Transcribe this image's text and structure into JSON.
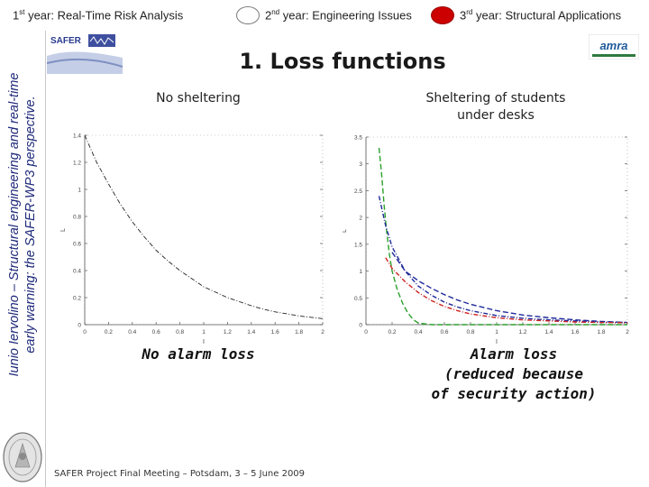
{
  "nav": {
    "items": [
      {
        "prefix": "1",
        "sup": "st",
        "rest": " year: Real-Time Risk Analysis",
        "active": false
      },
      {
        "prefix": "2",
        "sup": "nd",
        "rest": " year: Engineering Issues",
        "active": false
      },
      {
        "prefix": "3",
        "sup": "rd",
        "rest": " year: Structural Applications",
        "active": true
      }
    ]
  },
  "side_title": {
    "line1": "Iunio Iervolino – Structural engineering and real-time",
    "line2": "early warning: the SAFER-WP3 perspective."
  },
  "logos": {
    "left": "SAFER",
    "right": "amra"
  },
  "title": "1. Loss functions",
  "left_panel": {
    "subtitle": "No sheltering",
    "caption": "No alarm loss"
  },
  "right_panel": {
    "subtitle_line1": "Sheltering of students",
    "subtitle_line2": "under desks",
    "caption_line1": "Alarm loss",
    "caption_line2": "(reduced because",
    "caption_line3": "of security action)"
  },
  "footer": "SAFER Project Final Meeting – Potsdam, 3 – 5 June 2009",
  "colors": {
    "nav_active": "#cc0000",
    "side_title": "#1f2a7a",
    "series_green": "#2ca02c",
    "series_blue": "#1f2a9a",
    "series_red": "#cc2222"
  },
  "chart_data": [
    {
      "type": "line",
      "title": "",
      "xlabel": "I",
      "ylabel": "L",
      "xlim": [
        0,
        2
      ],
      "ylim": [
        0,
        1.4
      ],
      "xticks": [
        "0",
        "0.2",
        "0.4",
        "0.6",
        "0.8",
        "1",
        "1.2",
        "1.4",
        "1.6",
        "1.8",
        "2"
      ],
      "yticks": [
        "0",
        "0.2",
        "0.4",
        "0.6",
        "0.8",
        "1",
        "1.2",
        "1.4"
      ],
      "series": [
        {
          "style": "dash-dot",
          "color": "#222222",
          "x": [
            0,
            0.1,
            0.2,
            0.3,
            0.4,
            0.5,
            0.6,
            0.7,
            0.8,
            0.9,
            1.0,
            1.1,
            1.2,
            1.3,
            1.4,
            1.5,
            1.6,
            1.7,
            1.8,
            1.9,
            2.0
          ],
          "y": [
            1.4,
            1.2,
            1.04,
            0.89,
            0.76,
            0.65,
            0.55,
            0.47,
            0.4,
            0.34,
            0.28,
            0.24,
            0.2,
            0.17,
            0.14,
            0.115,
            0.095,
            0.08,
            0.065,
            0.055,
            0.045
          ]
        }
      ]
    },
    {
      "type": "line",
      "title": "",
      "xlabel": "I",
      "ylabel": "L",
      "xlim": [
        0,
        2
      ],
      "ylim": [
        0,
        3.5
      ],
      "xticks": [
        "0",
        "0.2",
        "0.4",
        "0.6",
        "0.8",
        "1",
        "1.2",
        "1.4",
        "1.6",
        "1.8",
        "2"
      ],
      "yticks": [
        "0",
        "0.5",
        "1",
        "1.5",
        "2",
        "2.5",
        "3",
        "3.5"
      ],
      "series": [
        {
          "style": "dashed",
          "color": "#2ca02c",
          "x": [
            0.1,
            0.12,
            0.14,
            0.16,
            0.18,
            0.2,
            0.24,
            0.28,
            0.32,
            0.36,
            0.4,
            0.5,
            0.7,
            1.0,
            2.0
          ],
          "y": [
            3.3,
            2.8,
            2.2,
            1.7,
            1.3,
            1.0,
            0.65,
            0.4,
            0.22,
            0.1,
            0.03,
            0.0,
            0.0,
            0.0,
            0.0
          ]
        },
        {
          "style": "dash-dot",
          "color": "#1f2a9a",
          "x": [
            0.1,
            0.15,
            0.2,
            0.3,
            0.4,
            0.5,
            0.6,
            0.7,
            0.8,
            1.0,
            1.2,
            1.4,
            1.6,
            1.8,
            2.0
          ],
          "y": [
            2.4,
            1.85,
            1.45,
            1.0,
            0.72,
            0.55,
            0.42,
            0.33,
            0.26,
            0.17,
            0.12,
            0.09,
            0.07,
            0.05,
            0.04
          ]
        },
        {
          "style": "dashed",
          "color": "#1f2a9a",
          "x": [
            0.2,
            0.3,
            0.4,
            0.5,
            0.6,
            0.7,
            0.8,
            1.0,
            1.2,
            1.4,
            1.6,
            1.8,
            2.0
          ],
          "y": [
            1.35,
            1.0,
            0.82,
            0.68,
            0.56,
            0.46,
            0.38,
            0.26,
            0.18,
            0.13,
            0.09,
            0.06,
            0.04
          ]
        },
        {
          "style": "dash-dot",
          "color": "#cc2222",
          "x": [
            0.15,
            0.2,
            0.3,
            0.4,
            0.5,
            0.6,
            0.7,
            0.8,
            1.0,
            1.2,
            1.4,
            1.6,
            1.8,
            2.0
          ],
          "y": [
            1.25,
            1.05,
            0.8,
            0.6,
            0.45,
            0.34,
            0.26,
            0.2,
            0.13,
            0.09,
            0.07,
            0.05,
            0.04,
            0.035
          ]
        }
      ]
    }
  ]
}
